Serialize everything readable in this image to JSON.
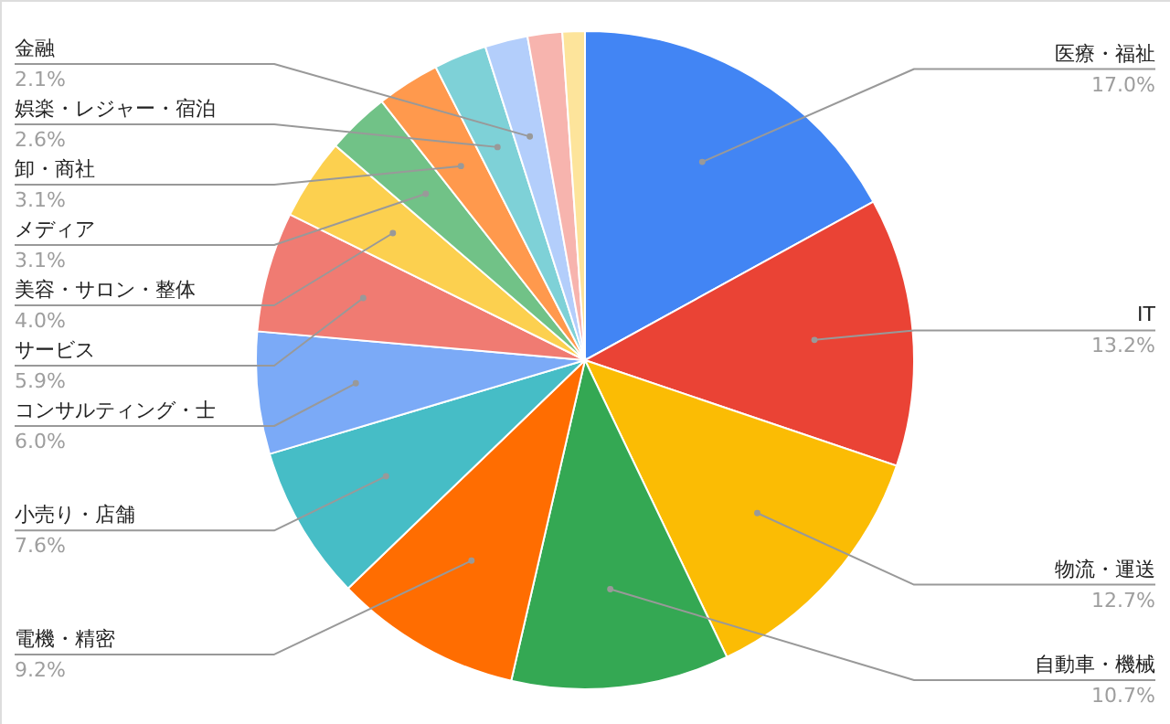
{
  "chart_data": {
    "type": "pie",
    "categories": [
      "医療・福祉",
      "IT",
      "物流・運送",
      "自動車・機械",
      "電機・精密",
      "小売り・店舗",
      "コンサルティング・士",
      "サービス",
      "美容・サロン・整体",
      "メディア",
      "卸・商社",
      "娯楽・レジャー・宿泊",
      "金融",
      null,
      null
    ],
    "values": [
      17.0,
      13.2,
      12.7,
      10.7,
      9.2,
      7.6,
      6.0,
      5.9,
      4.0,
      3.1,
      3.1,
      2.6,
      2.1,
      1.7,
      1.1
    ],
    "colors": [
      "#4285f4",
      "#ea4335",
      "#fbbc04",
      "#34a853",
      "#ff6d01",
      "#46bdc6",
      "#7baaf7",
      "#f07b72",
      "#fcd04f",
      "#71c287",
      "#ff994d",
      "#7ed1d7",
      "#b3cefb",
      "#f7b4ae",
      "#fde49b"
    ],
    "value_labels": [
      "17.0%",
      "13.2%",
      "12.7%",
      "10.7%",
      "9.2%",
      "7.6%",
      "6.0%",
      "5.9%",
      "4.0%",
      "3.1%",
      "3.1%",
      "2.6%",
      "2.1%",
      null,
      null
    ]
  }
}
